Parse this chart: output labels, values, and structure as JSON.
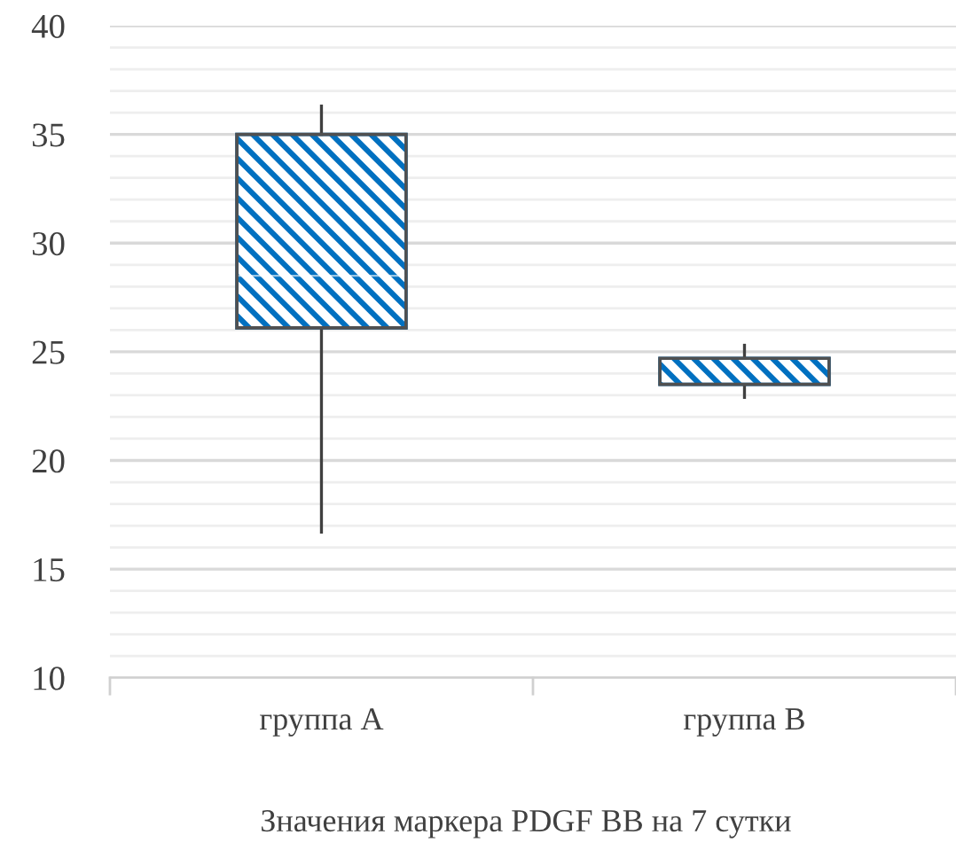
{
  "chart_data": {
    "type": "box",
    "title": "Значения маркера PDGF BB на 7 сутки",
    "categories": [
      "группа А",
      "группа В"
    ],
    "color": "#0070c0",
    "boxes": [
      {
        "low": 16.7,
        "q1": 26.1,
        "median": 28.5,
        "q3": 35,
        "high": 36.3
      },
      {
        "low": 22.9,
        "q1": 23.5,
        "median": 24.7,
        "q3": 24.7,
        "high": 25.3
      }
    ],
    "ylim": [
      10,
      40
    ],
    "yticks": [
      10,
      {
        "value": 11,
        "label": null
      },
      {
        "value": 12,
        "label": null
      },
      {
        "value": 13,
        "label": null
      },
      {
        "value": 14,
        "label": null
      },
      15,
      {
        "value": 16,
        "label": null
      },
      {
        "value": 17,
        "label": null
      },
      {
        "value": 18,
        "label": null
      },
      {
        "value": 19,
        "label": null
      },
      20,
      {
        "value": 21,
        "label": null
      },
      {
        "value": 22,
        "label": null
      },
      {
        "value": 23,
        "label": null
      },
      {
        "value": 24,
        "label": null
      },
      25,
      {
        "value": 26,
        "label": null
      },
      {
        "value": 27,
        "label": null
      },
      {
        "value": 28,
        "label": null
      },
      {
        "value": 29,
        "label": null
      },
      30,
      {
        "value": 31,
        "label": null
      },
      {
        "value": 32,
        "label": null
      },
      {
        "value": 33,
        "label": null
      },
      {
        "value": 34,
        "label": null
      },
      35,
      {
        "value": 36,
        "label": null
      },
      {
        "value": 37,
        "label": null
      },
      {
        "value": 38,
        "label": null
      },
      {
        "value": 39,
        "label": null
      },
      40
    ],
    "grid": "y"
  }
}
